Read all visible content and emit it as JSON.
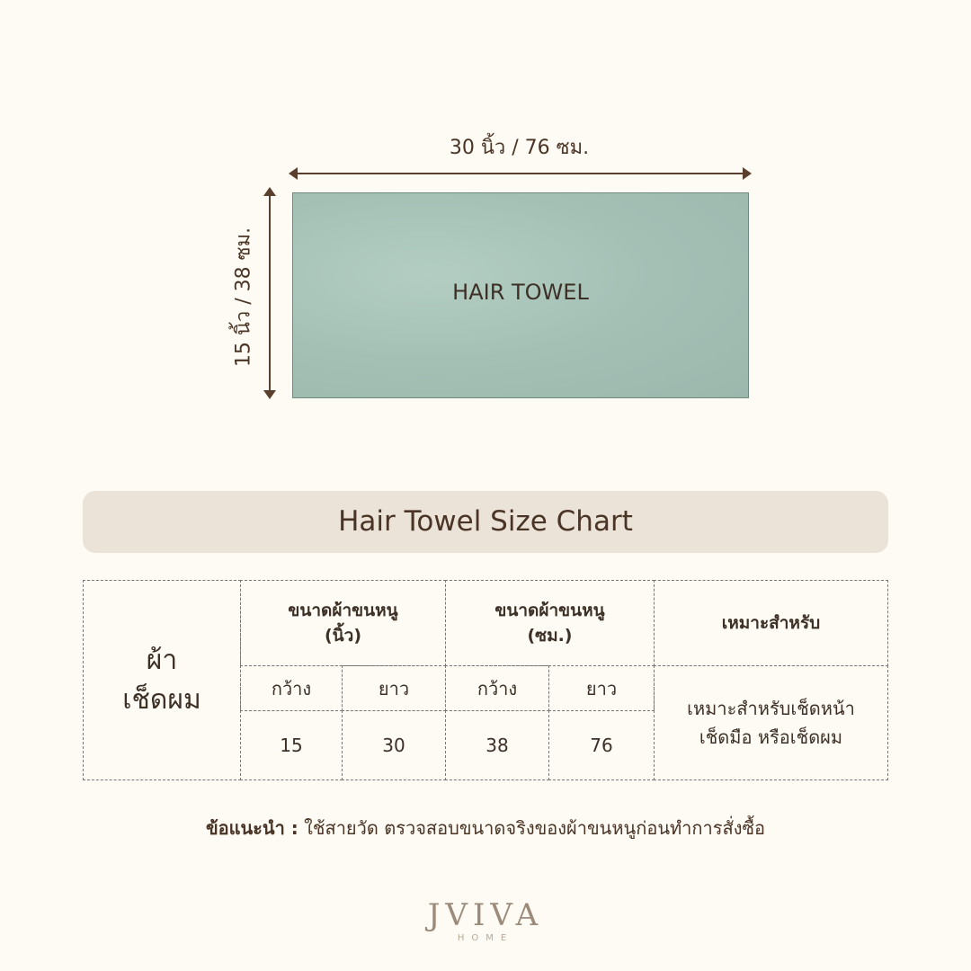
{
  "dimensions": {
    "width_label": "30 นิ้ว / 76 ซม.",
    "height_label": "15 นิ้ว / 38 ซม."
  },
  "towel": {
    "label": "HAIR TOWEL",
    "color": "#a7c3b8"
  },
  "title": "Hair Towel Size Chart",
  "table": {
    "row_label": "ผ้า\nเช็ดผม",
    "headers": [
      "ขนาดผ้าขนหนู\n(นิ้ว)",
      "ขนาดผ้าขนหนู\n(ซม.)",
      "เหมาะสำหรับ"
    ],
    "subheaders": [
      "กว้าง",
      "ยาว",
      "กว้าง",
      "ยาว"
    ],
    "values": [
      "15",
      "30",
      "38",
      "76"
    ],
    "suitable": "เหมาะสำหรับเช็ดหน้า\nเช็ดมือ หรือเช็ดผม"
  },
  "note": {
    "label": "ข้อแนะนำ :",
    "text": "ใช้สายวัด ตรวจสอบขนาดจริงของผ้าขนหนูก่อนทำการสั่งซื้อ"
  },
  "logo": {
    "brand": "JVIVA",
    "sub": "HOME"
  }
}
